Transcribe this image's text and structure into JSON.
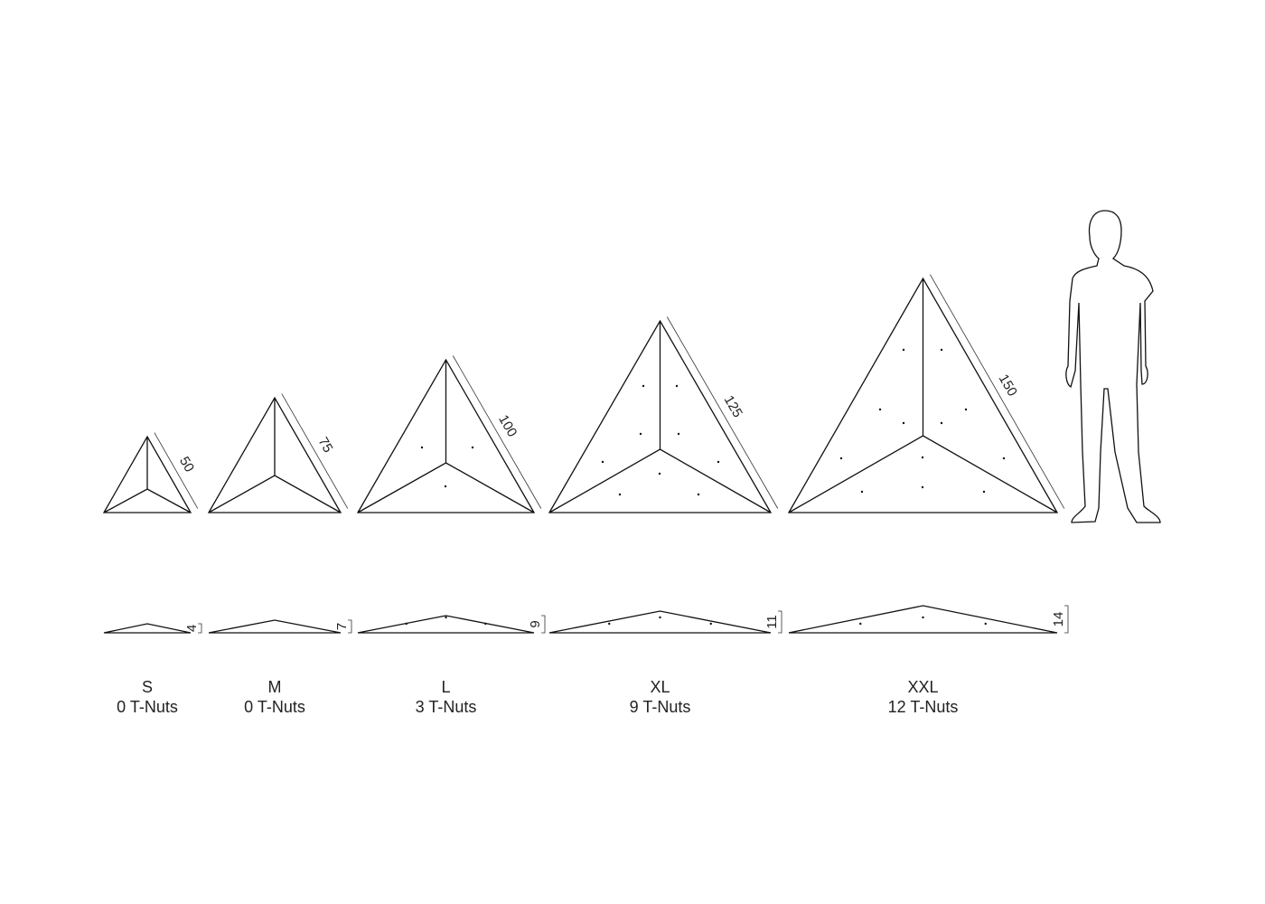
{
  "items": [
    {
      "size": "S",
      "tnuts": "0 T-Nuts",
      "length": "50",
      "height": "4"
    },
    {
      "size": "M",
      "tnuts": "0 T-Nuts",
      "length": "75",
      "height": "7"
    },
    {
      "size": "L",
      "tnuts": "3 T-Nuts",
      "length": "100",
      "height": "9"
    },
    {
      "size": "XL",
      "tnuts": "9 T-Nuts",
      "length": "125",
      "height": "11"
    },
    {
      "size": "XXL",
      "tnuts": "12 T-Nuts",
      "length": "150",
      "height": "14"
    }
  ]
}
